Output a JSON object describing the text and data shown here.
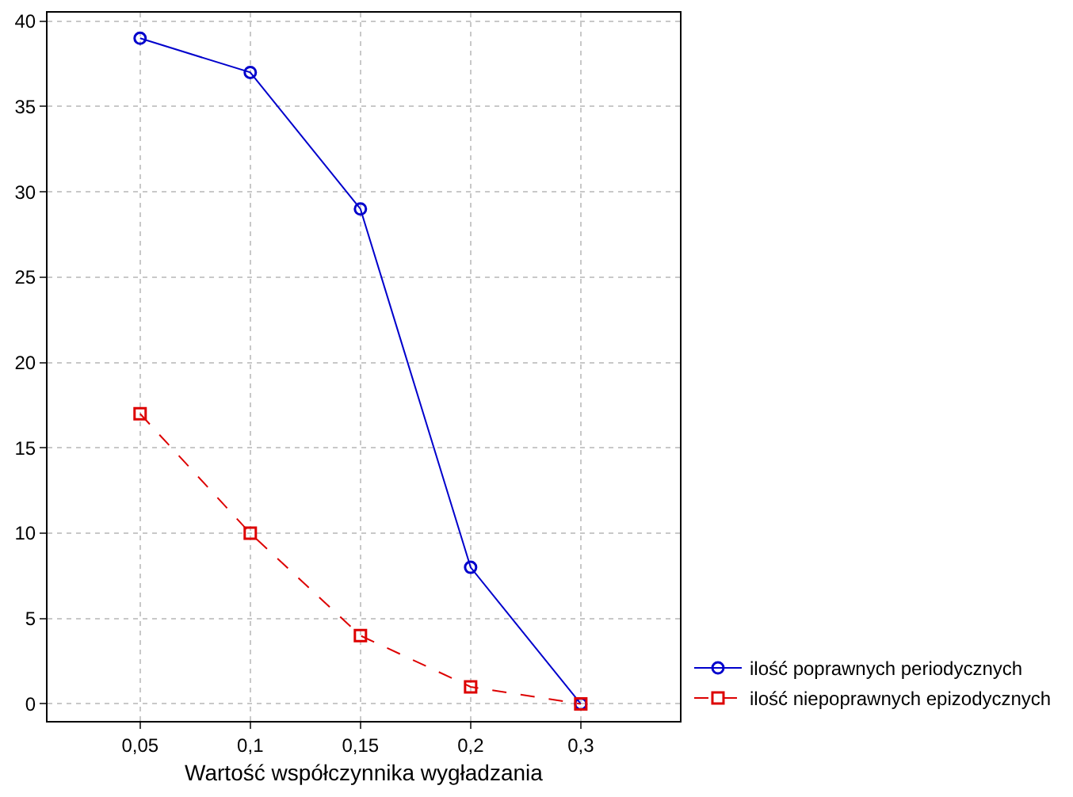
{
  "chart_data": {
    "type": "line",
    "xlabel": "Wartość współczynnika wygładzania",
    "categories": [
      "0,05",
      "0,1",
      "0,15",
      "0,2",
      "0,3"
    ],
    "series": [
      {
        "name": "ilość poprawnych periodycznych",
        "color": "#0000cc",
        "values": [
          39,
          37,
          29,
          8,
          0
        ],
        "marker": "circle",
        "line_style": "solid"
      },
      {
        "name": "ilość niepoprawnych epizodycznych",
        "color": "#dd0000",
        "values": [
          17,
          10,
          4,
          1,
          0
        ],
        "marker": "square",
        "line_style": "dashed"
      }
    ],
    "ylim": [
      -1,
      40.5
    ],
    "yticks": [
      0,
      5,
      10,
      15,
      20,
      25,
      30,
      35,
      40
    ],
    "grid": true,
    "legend": "bottom right"
  }
}
